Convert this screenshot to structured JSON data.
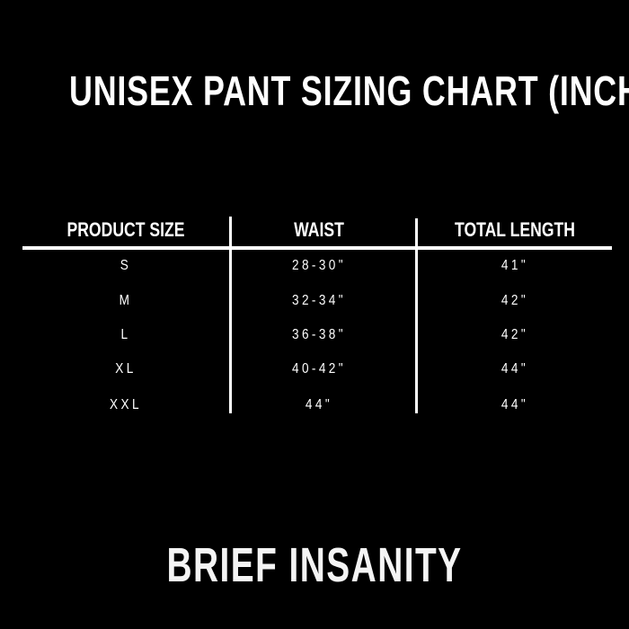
{
  "title": "UNISEX PANT SIZING CHART (INCHES)",
  "table": {
    "headers": [
      "PRODUCT SIZE",
      "WAIST",
      "TOTAL LENGTH"
    ],
    "rows": [
      [
        "S",
        "28-30\"",
        "41\""
      ],
      [
        "M",
        "32-34\"",
        "42\""
      ],
      [
        "L",
        "36-38\"",
        "42\""
      ],
      [
        "XL",
        "40-42\"",
        "44\""
      ],
      [
        "XXL",
        "44\"",
        "44\""
      ]
    ]
  },
  "brand": "BRIEF INSANITY"
}
